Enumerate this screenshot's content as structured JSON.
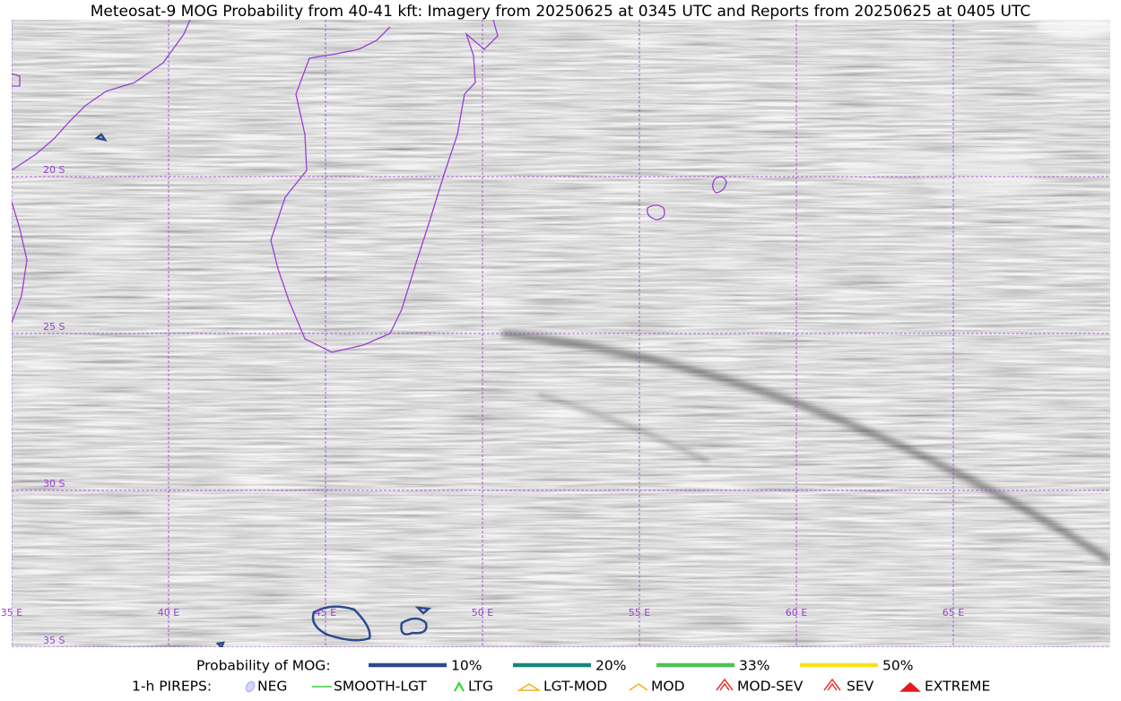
{
  "title": "Meteosat-9 MOG Probability from 40-41 kft: Imagery from 20250625 at 0345 UTC and Reports from 20250625 at 0405 UTC",
  "map": {
    "lat_labels": [
      "20 S",
      "25 S",
      "30 S",
      "35 S"
    ],
    "lon_labels": [
      "35 E",
      "40 E",
      "45 E",
      "50 E",
      "55 E",
      "60 E",
      "65 E"
    ]
  },
  "legend": {
    "title": "Probability of MOG:",
    "items": [
      {
        "label": "10%",
        "color": "#2e4a8e"
      },
      {
        "label": "20%",
        "color": "#15877e"
      },
      {
        "label": "33%",
        "color": "#4bc256"
      },
      {
        "label": "50%",
        "color": "#f7e11a"
      }
    ]
  },
  "pireps": {
    "title": "1-h PIREPS:",
    "items": [
      "NEG",
      "SMOOTH-LGT",
      "LTG",
      "LGT-MOD",
      "MOD",
      "MOD-SEV",
      "SEV",
      "EXTREME"
    ]
  }
}
